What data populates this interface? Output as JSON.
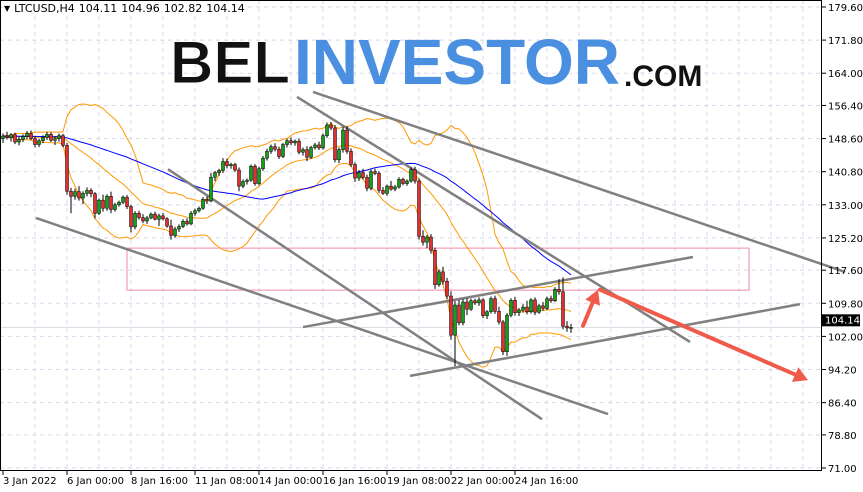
{
  "header": {
    "symbol": "LTCUSD,H4",
    "open": "104.11",
    "high": "104.96",
    "low": "102.82",
    "close": "104.14",
    "menu_icon": "triangle-down-icon"
  },
  "logo": {
    "part1": "BEL",
    "part2": "INVESTOR",
    "part3": ".COM"
  },
  "chart_data": {
    "type": "candlestick",
    "title": "LTCUSD,H4",
    "ylim": [
      71.0,
      179.6
    ],
    "yticks": [
      "179.60",
      "171.80",
      "164.00",
      "156.40",
      "148.60",
      "140.80",
      "133.00",
      "125.20",
      "117.60",
      "109.80",
      "102.00",
      "94.20",
      "86.40",
      "78.80",
      "71.00"
    ],
    "xticks": [
      {
        "bar": 0,
        "label": "3 Jan 2022"
      },
      {
        "bar": 16,
        "label": "6 Jan 00:00"
      },
      {
        "bar": 32,
        "label": "8 Jan 16:00"
      },
      {
        "bar": 48,
        "label": "11 Jan 08:00"
      },
      {
        "bar": 64,
        "label": "14 Jan 00:00"
      },
      {
        "bar": 80,
        "label": "16 Jan 16:00"
      },
      {
        "bar": 96,
        "label": "19 Jan 08:00"
      },
      {
        "bar": 112,
        "label": "22 Jan 00:00"
      },
      {
        "bar": 128,
        "label": "24 Jan 16:00"
      }
    ],
    "current_price": "104.14",
    "grid": true,
    "colors": {
      "bull": "#1a9e1a",
      "bear": "#e03030",
      "wick": "#000000",
      "ma": "#0000ff",
      "bands": "#ff9900",
      "trendline": "#808080",
      "zone": "#f08aa8",
      "arrow": "#f05a4a",
      "grid": "#d8d8ec"
    },
    "indicators": {
      "moving_average_period": 50,
      "bollinger_period": 20,
      "bollinger_deviation": 2
    },
    "ohlc": [
      [
        148.6,
        149.8,
        147.6,
        149.2
      ],
      [
        149.2,
        150.2,
        148.4,
        148.8
      ],
      [
        148.8,
        149.9,
        147.9,
        149.5
      ],
      [
        149.5,
        150.0,
        147.3,
        147.8
      ],
      [
        147.8,
        149.0,
        147.0,
        148.4
      ],
      [
        148.4,
        149.6,
        147.8,
        149.1
      ],
      [
        149.1,
        150.4,
        148.5,
        149.8
      ],
      [
        149.8,
        150.5,
        148.2,
        148.6
      ],
      [
        148.6,
        149.2,
        146.5,
        147.2
      ],
      [
        147.2,
        148.6,
        146.6,
        148.1
      ],
      [
        148.1,
        149.4,
        147.5,
        148.9
      ],
      [
        148.9,
        150.2,
        148.3,
        149.6
      ],
      [
        149.6,
        150.1,
        147.8,
        148.2
      ],
      [
        148.2,
        149.1,
        147.1,
        148.6
      ],
      [
        148.6,
        149.8,
        147.9,
        149.3
      ],
      [
        149.3,
        149.7,
        146.6,
        147.0
      ],
      [
        147.0,
        147.6,
        135.4,
        136.2
      ],
      [
        136.2,
        137.0,
        131.0,
        135.0
      ],
      [
        135.0,
        136.8,
        134.2,
        136.1
      ],
      [
        136.1,
        137.4,
        134.0,
        134.6
      ],
      [
        134.6,
        136.2,
        133.2,
        135.7
      ],
      [
        135.7,
        137.1,
        135.0,
        136.4
      ],
      [
        136.4,
        136.9,
        134.8,
        135.6
      ],
      [
        135.6,
        136.0,
        129.8,
        131.0
      ],
      [
        131.0,
        134.5,
        130.6,
        134.1
      ],
      [
        134.1,
        135.4,
        131.4,
        132.2
      ],
      [
        132.2,
        135.5,
        131.6,
        135.0
      ],
      [
        135.0,
        136.1,
        131.0,
        131.9
      ],
      [
        131.9,
        133.5,
        131.4,
        133.0
      ],
      [
        133.0,
        134.0,
        132.6,
        133.6
      ],
      [
        133.6,
        135.2,
        133.2,
        134.8
      ],
      [
        134.8,
        135.3,
        132.0,
        132.6
      ],
      [
        132.6,
        133.0,
        126.5,
        127.8
      ],
      [
        127.8,
        131.5,
        127.2,
        131.0
      ],
      [
        131.0,
        131.6,
        129.5,
        130.0
      ],
      [
        130.0,
        130.8,
        128.7,
        129.2
      ],
      [
        129.2,
        130.4,
        128.5,
        129.9
      ],
      [
        129.9,
        131.2,
        129.6,
        130.8
      ],
      [
        130.8,
        131.4,
        129.3,
        129.6
      ],
      [
        129.6,
        130.9,
        128.0,
        130.4
      ],
      [
        130.4,
        131.1,
        129.3,
        129.7
      ],
      [
        129.7,
        130.1,
        127.6,
        128.0
      ],
      [
        128.0,
        129.5,
        124.8,
        125.8
      ],
      [
        125.8,
        127.8,
        125.2,
        127.3
      ],
      [
        127.3,
        128.4,
        126.6,
        127.9
      ],
      [
        127.9,
        129.6,
        127.5,
        129.1
      ],
      [
        129.1,
        129.8,
        128.1,
        128.5
      ],
      [
        128.5,
        131.5,
        128.2,
        131.0
      ],
      [
        131.0,
        132.1,
        130.4,
        131.6
      ],
      [
        131.6,
        132.6,
        131.2,
        132.2
      ],
      [
        132.2,
        134.8,
        131.8,
        134.3
      ],
      [
        134.3,
        135.0,
        133.2,
        133.9
      ],
      [
        133.9,
        140.5,
        133.6,
        139.5
      ],
      [
        139.5,
        141.0,
        138.6,
        140.6
      ],
      [
        140.6,
        141.5,
        139.8,
        141.1
      ],
      [
        141.1,
        144.0,
        140.5,
        143.2
      ],
      [
        143.2,
        143.9,
        141.6,
        142.2
      ],
      [
        142.2,
        142.9,
        141.5,
        142.5
      ],
      [
        142.5,
        142.9,
        140.8,
        141.2
      ],
      [
        141.2,
        141.8,
        136.2,
        137.4
      ],
      [
        137.4,
        139.0,
        136.9,
        138.5
      ],
      [
        138.5,
        139.2,
        137.8,
        138.8
      ],
      [
        138.8,
        142.5,
        138.4,
        142.1
      ],
      [
        142.1,
        142.6,
        137.5,
        138.0
      ],
      [
        138.0,
        142.0,
        137.6,
        141.5
      ],
      [
        141.5,
        144.5,
        141.0,
        144.0
      ],
      [
        144.0,
        146.2,
        143.4,
        145.6
      ],
      [
        145.6,
        147.2,
        145.0,
        146.7
      ],
      [
        146.7,
        147.5,
        145.6,
        146.1
      ],
      [
        146.1,
        146.7,
        143.8,
        144.4
      ],
      [
        144.4,
        147.6,
        144.0,
        147.2
      ],
      [
        147.2,
        148.6,
        146.5,
        148.1
      ],
      [
        148.1,
        148.9,
        147.1,
        147.6
      ],
      [
        147.6,
        148.4,
        146.9,
        148.0
      ],
      [
        148.0,
        148.6,
        144.9,
        145.4
      ],
      [
        145.4,
        146.5,
        144.6,
        146.0
      ],
      [
        146.0,
        146.8,
        143.3,
        144.2
      ],
      [
        144.2,
        146.9,
        143.8,
        146.5
      ],
      [
        146.5,
        147.6,
        146.0,
        147.1
      ],
      [
        147.1,
        147.9,
        145.9,
        146.4
      ],
      [
        146.4,
        149.8,
        146.0,
        149.3
      ],
      [
        149.3,
        152.4,
        148.8,
        151.8
      ],
      [
        151.8,
        152.5,
        150.6,
        151.1
      ],
      [
        151.1,
        151.8,
        143.0,
        143.6
      ],
      [
        143.6,
        146.5,
        142.8,
        146.0
      ],
      [
        146.0,
        151.4,
        145.3,
        150.6
      ],
      [
        150.6,
        151.5,
        145.0,
        145.6
      ],
      [
        145.6,
        146.3,
        141.9,
        142.5
      ],
      [
        142.5,
        143.0,
        138.4,
        139.3
      ],
      [
        139.3,
        141.2,
        138.6,
        140.6
      ],
      [
        140.6,
        141.5,
        139.0,
        139.5
      ],
      [
        139.5,
        140.1,
        136.2,
        136.9
      ],
      [
        136.9,
        141.3,
        136.4,
        140.8
      ],
      [
        140.8,
        141.5,
        140.0,
        140.4
      ],
      [
        140.4,
        140.9,
        135.8,
        136.4
      ],
      [
        136.4,
        137.2,
        135.3,
        135.7
      ],
      [
        135.7,
        137.8,
        135.1,
        137.4
      ],
      [
        137.4,
        138.6,
        136.3,
        136.7
      ],
      [
        136.7,
        137.7,
        136.2,
        137.2
      ],
      [
        137.2,
        139.5,
        136.8,
        139.0
      ],
      [
        139.0,
        139.4,
        137.6,
        138.0
      ],
      [
        138.0,
        139.0,
        137.5,
        138.6
      ],
      [
        138.6,
        141.8,
        138.2,
        141.3
      ],
      [
        141.3,
        142.0,
        138.0,
        138.6
      ],
      [
        138.6,
        139.2,
        124.8,
        125.6
      ],
      [
        125.6,
        127.0,
        123.4,
        124.2
      ],
      [
        124.2,
        125.9,
        122.8,
        125.4
      ],
      [
        125.4,
        126.1,
        121.5,
        122.3
      ],
      [
        122.3,
        122.9,
        113.2,
        114.2
      ],
      [
        114.2,
        117.8,
        113.7,
        117.2
      ],
      [
        117.2,
        118.4,
        114.2,
        115.0
      ],
      [
        115.0,
        115.8,
        110.8,
        111.5
      ],
      [
        111.5,
        112.6,
        101.2,
        102.3
      ],
      [
        102.3,
        110.3,
        95.0,
        109.4
      ],
      [
        109.4,
        110.6,
        104.6,
        105.2
      ],
      [
        105.2,
        110.8,
        104.6,
        110.1
      ],
      [
        110.1,
        111.0,
        107.0,
        108.4
      ],
      [
        108.4,
        110.9,
        108.0,
        110.4
      ],
      [
        110.4,
        110.9,
        109.4,
        109.9
      ],
      [
        109.9,
        111.2,
        109.2,
        110.6
      ],
      [
        110.6,
        111.0,
        106.3,
        106.9
      ],
      [
        106.9,
        108.2,
        106.1,
        107.8
      ],
      [
        107.8,
        111.4,
        107.4,
        110.9
      ],
      [
        110.9,
        111.6,
        107.3,
        107.9
      ],
      [
        107.9,
        109.0,
        104.8,
        105.4
      ],
      [
        105.4,
        105.9,
        97.6,
        98.4
      ],
      [
        98.4,
        107.5,
        97.4,
        107.0
      ],
      [
        107.0,
        111.0,
        106.5,
        110.5
      ],
      [
        110.5,
        111.3,
        106.9,
        107.6
      ],
      [
        107.6,
        108.7,
        106.8,
        108.2
      ],
      [
        108.2,
        109.6,
        107.6,
        108.9
      ],
      [
        108.9,
        110.4,
        107.2,
        107.8
      ],
      [
        107.8,
        111.0,
        107.4,
        110.6
      ],
      [
        110.6,
        111.2,
        107.0,
        107.7
      ],
      [
        107.7,
        109.6,
        107.3,
        109.2
      ],
      [
        109.2,
        110.1,
        108.0,
        108.6
      ],
      [
        108.6,
        111.4,
        108.2,
        110.9
      ],
      [
        110.9,
        111.6,
        109.9,
        110.4
      ],
      [
        110.4,
        113.6,
        110.1,
        113.1
      ],
      [
        113.1,
        115.5,
        111.8,
        112.5
      ],
      [
        112.5,
        115.9,
        103.7,
        104.4
      ],
      [
        104.4,
        105.6,
        103.1,
        104.0
      ],
      [
        104.11,
        104.96,
        102.82,
        104.14
      ]
    ],
    "trendlines": [
      [
        [
          8.25,
          129.9
        ],
        [
          151.25,
          83.7
        ]
      ],
      [
        [
          41.25,
          141.4
        ],
        [
          134.75,
          82.5
        ]
      ],
      [
        [
          73.5,
          158.4
        ],
        [
          171.75,
          100.7
        ]
      ],
      [
        [
          77.5,
          159.6
        ],
        [
          210.5,
          117.2
        ]
      ],
      [
        [
          75,
          104.2
        ],
        [
          172.5,
          120.7
        ]
      ],
      [
        [
          101.75,
          92.7
        ],
        [
          199.25,
          109.6
        ]
      ]
    ],
    "zone": {
      "bar_from": 31,
      "bar_to": 186.5,
      "price_high": 122.8,
      "price_low": 112.9
    },
    "arrows": [
      [
        [
          145,
          104.5
        ],
        [
          148.75,
          113.0
        ]
      ],
      [
        [
          149.25,
          113.0
        ],
        [
          201.25,
          91.7
        ]
      ]
    ]
  }
}
